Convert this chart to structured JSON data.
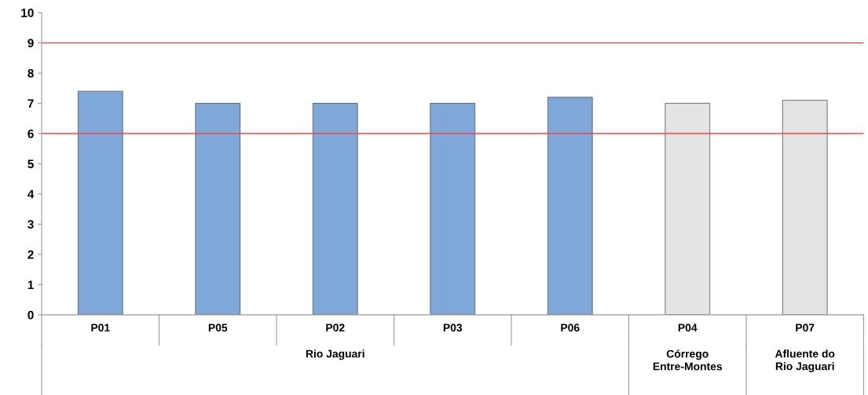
{
  "chart_data": {
    "type": "bar",
    "categories": [
      "P01",
      "P05",
      "P02",
      "P03",
      "P06",
      "P04",
      "P07"
    ],
    "values": [
      7.4,
      7.0,
      7.0,
      7.0,
      7.2,
      7.0,
      7.1
    ],
    "colors": [
      "#7fa8d8",
      "#7fa8d8",
      "#7fa8d8",
      "#7fa8d8",
      "#7fa8d8",
      "#e4e4e4",
      "#e4e4e4"
    ],
    "ylim": [
      0,
      10
    ],
    "yticks": [
      0,
      1,
      2,
      3,
      4,
      5,
      6,
      7,
      8,
      9,
      10
    ],
    "grid": false,
    "ref_lines": [
      {
        "axis": "y",
        "value": 9,
        "color": "#ff4040"
      },
      {
        "axis": "y",
        "value": 6,
        "color": "#ff4040"
      }
    ],
    "annotations": [
      "Rio Jaguari",
      "Córrego\nEntre-Montes",
      "Afluente do\nRio Jaguari"
    ]
  }
}
